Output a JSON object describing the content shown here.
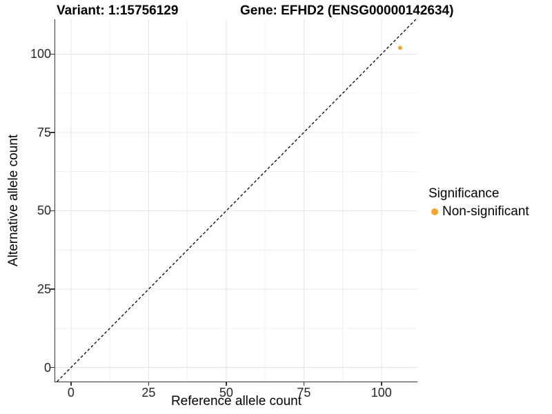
{
  "chart_data": {
    "type": "scatter",
    "title_left": "Variant: 1:15756129",
    "title_right": "Gene: EFHD2 (ENSG00000142634)",
    "xlabel": "Reference allele count",
    "ylabel": "Alternative allele count",
    "xlim": [
      -5.1,
      111.6
    ],
    "ylim": [
      -4.5,
      111.1
    ],
    "x_ticks": [
      0,
      25,
      50,
      75,
      100
    ],
    "y_ticks": [
      0,
      25,
      50,
      75,
      100
    ],
    "x_minor_ticks": [
      12.5,
      37.5,
      62.5,
      87.5
    ],
    "y_minor_ticks": [
      12.5,
      37.5,
      62.5,
      87.5
    ],
    "grid": true,
    "reference_line": {
      "type": "identity",
      "slope": 1,
      "intercept": 0,
      "style": "dashed"
    },
    "series": [
      {
        "name": "Non-significant",
        "color": "#F8A32C",
        "points": [
          {
            "x": 106,
            "y": 102
          }
        ]
      }
    ],
    "legend": {
      "position": "right",
      "title": "Significance",
      "entries": [
        {
          "label": "Non-significant",
          "color": "#F8A32C"
        }
      ]
    },
    "colors": {
      "point": "#F8A32C",
      "grid_major": "#E4E4E4",
      "grid_minor": "#F0F0F0",
      "axis_line": "#333333",
      "tick_text": "#262626",
      "identity_line": "#000000",
      "background": "#FFFFFF"
    }
  }
}
